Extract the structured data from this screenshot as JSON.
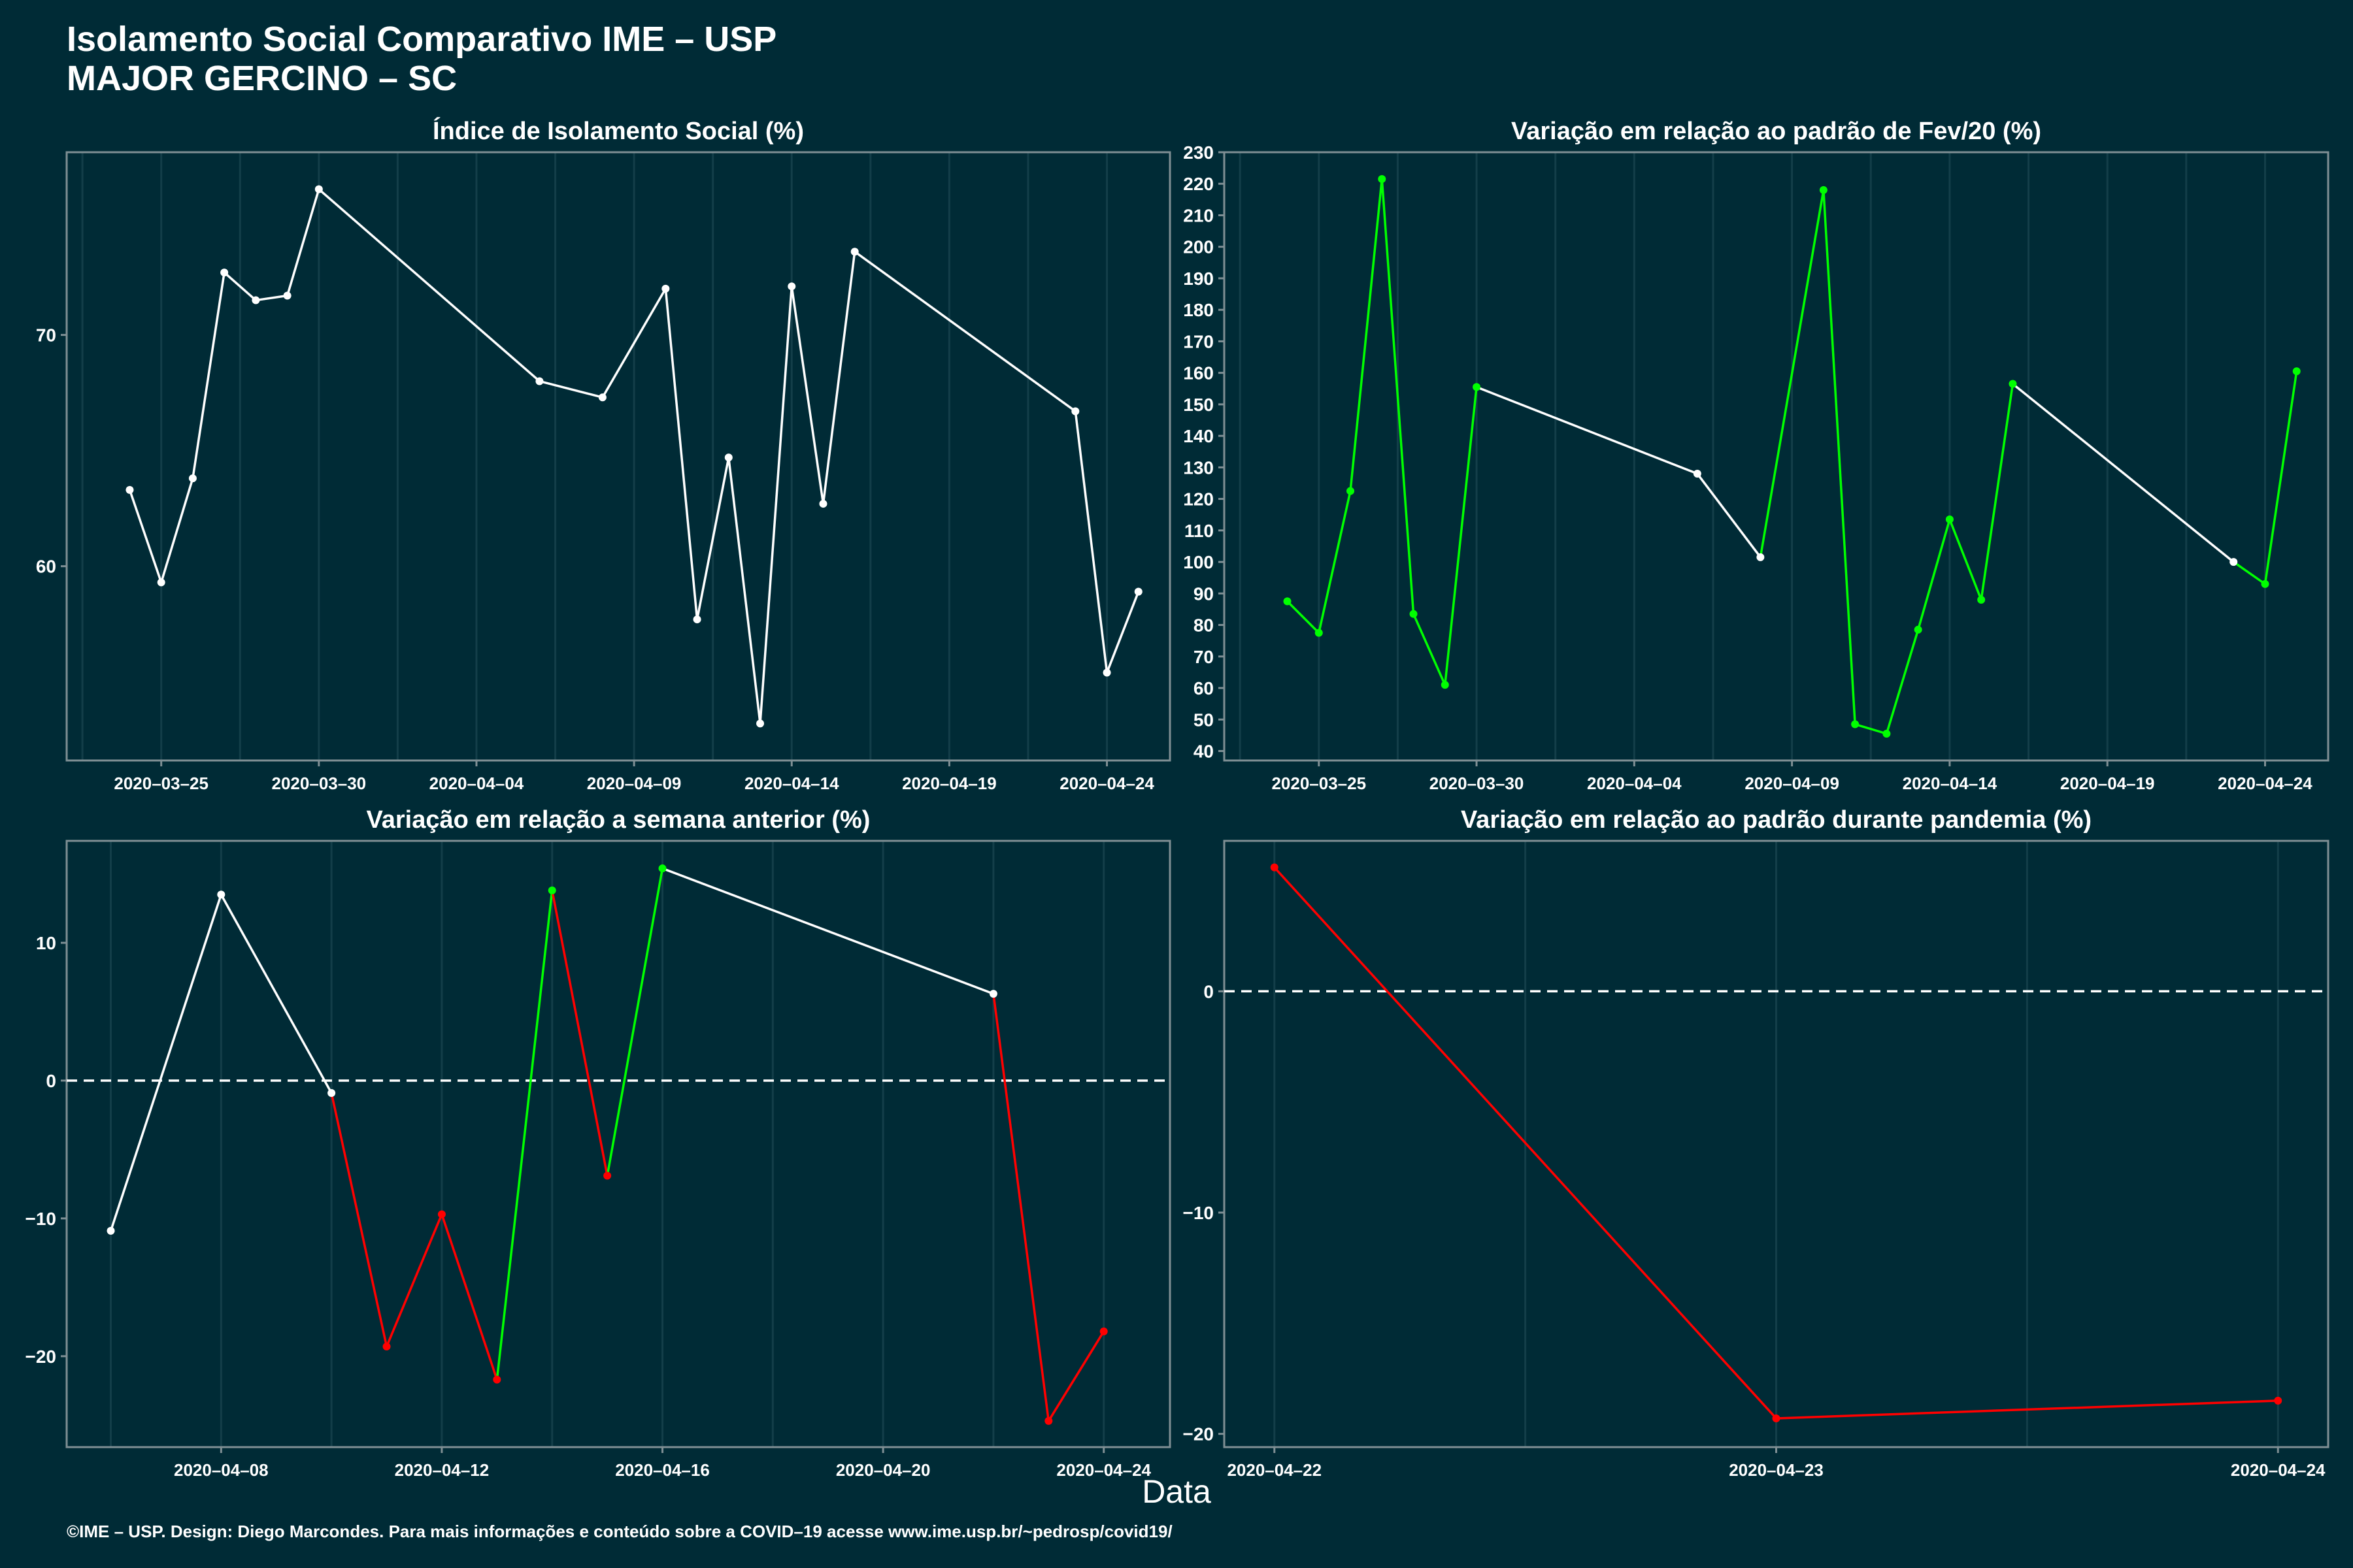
{
  "title_line1": "Isolamento Social Comparativo IME – USP",
  "title_line2": "MAJOR GERCINO – SC",
  "x_axis_label": "Data",
  "footer": "©IME – USP. Design: Diego Marcondes. Para mais informações e conteúdo sobre a COVID–19 acesse www.ime.usp.br/~pedrosp/covid19/",
  "colors": {
    "background": "#002b36",
    "line_default": "#ffffff",
    "increase": "#00ff00",
    "decrease": "#ff0000",
    "axis": "#7f8f94",
    "grid": "#133e49"
  },
  "chart_data": [
    {
      "type": "line",
      "title": "Índice de Isolamento Social (%)",
      "x": [
        "2020-03-24",
        "2020-03-25",
        "2020-03-26",
        "2020-03-27",
        "2020-03-28",
        "2020-03-29",
        "2020-03-30",
        "2020-04-06",
        "2020-04-08",
        "2020-04-10",
        "2020-04-11",
        "2020-04-12",
        "2020-04-13",
        "2020-04-14",
        "2020-04-15",
        "2020-04-16",
        "2020-04-23",
        "2020-04-24",
        "2020-04-25"
      ],
      "values": [
        63.3,
        59.3,
        63.8,
        72.7,
        71.5,
        71.7,
        76.3,
        68.0,
        67.3,
        72.0,
        57.7,
        64.7,
        53.2,
        72.1,
        62.7,
        73.6,
        66.7,
        55.4,
        58.9
      ],
      "segment_colors": [
        "white",
        "white",
        "white",
        "white",
        "white",
        "white",
        "white",
        "white",
        "white",
        "white",
        "white",
        "white",
        "white",
        "white",
        "white",
        "white",
        "white",
        "white"
      ],
      "xticks": [
        "2020-03-25",
        "2020-03-30",
        "2020-04-04",
        "2020-04-09",
        "2020-04-14",
        "2020-04-19",
        "2020-04-24"
      ],
      "yticks": [
        60,
        70
      ],
      "xlim": [
        "2020-03-22",
        "2020-04-26"
      ],
      "ylim": [
        51.6,
        77.9
      ]
    },
    {
      "type": "line",
      "title": "Variação em relação ao padrão de Fev/20 (%)",
      "x": [
        "2020-03-24",
        "2020-03-25",
        "2020-03-26",
        "2020-03-27",
        "2020-03-28",
        "2020-03-29",
        "2020-03-30",
        "2020-04-06",
        "2020-04-08",
        "2020-04-10",
        "2020-04-11",
        "2020-04-12",
        "2020-04-13",
        "2020-04-14",
        "2020-04-15",
        "2020-04-16",
        "2020-04-23",
        "2020-04-24",
        "2020-04-25"
      ],
      "values": [
        87.5,
        77.5,
        122.5,
        221.5,
        83.5,
        61.0,
        155.5,
        128.0,
        101.5,
        218.0,
        48.5,
        45.5,
        78.5,
        113.5,
        88.0,
        156.5,
        100.0,
        93.0,
        160.5
      ],
      "segment_colors": [
        "green",
        "green",
        "green",
        "green",
        "green",
        "green",
        "white",
        "white",
        "green",
        "green",
        "green",
        "green",
        "green",
        "green",
        "green",
        "white",
        "green",
        "green"
      ],
      "xticks": [
        "2020-03-25",
        "2020-03-30",
        "2020-04-04",
        "2020-04-09",
        "2020-04-14",
        "2020-04-19",
        "2020-04-24"
      ],
      "yticks": [
        40,
        50,
        60,
        70,
        80,
        90,
        100,
        110,
        120,
        130,
        140,
        150,
        160,
        170,
        180,
        190,
        200,
        210,
        220,
        230
      ],
      "xlim": [
        "2020-03-22",
        "2020-04-26"
      ],
      "ylim": [
        37,
        230
      ]
    },
    {
      "type": "line",
      "title": "Variação em relação a semana anterior (%)",
      "x": [
        "2020-04-06",
        "2020-04-08",
        "2020-04-10",
        "2020-04-11",
        "2020-04-12",
        "2020-04-13",
        "2020-04-14",
        "2020-04-15",
        "2020-04-16",
        "2020-04-22",
        "2020-04-23",
        "2020-04-24"
      ],
      "values": [
        -10.9,
        13.5,
        -0.9,
        -19.3,
        -9.7,
        -21.7,
        13.8,
        -6.9,
        15.4,
        6.3,
        -24.7,
        -18.2
      ],
      "segment_colors": [
        "white",
        "white",
        "red",
        "red",
        "red",
        "green",
        "red",
        "green",
        "white",
        "red",
        "red"
      ],
      "xticks": [
        "2020-04-08",
        "2020-04-12",
        "2020-04-16",
        "2020-04-20",
        "2020-04-24"
      ],
      "yticks": [
        -20,
        -10,
        0,
        10
      ],
      "reference_line": 0,
      "xlim": [
        "2020-04-05.2",
        "2020-04-25.2"
      ],
      "ylim": [
        -26.6,
        17.4
      ]
    },
    {
      "type": "line",
      "title": "Variação em relação ao padrão durante pandemia (%)",
      "x": [
        "2020-04-22",
        "2020-04-23",
        "2020-04-24"
      ],
      "values": [
        5.6,
        -19.3,
        -18.5
      ],
      "segment_colors": [
        "red",
        "red"
      ],
      "xticks": [
        "2020-04-22",
        "2020-04-23",
        "2020-04-24"
      ],
      "yticks": [
        -20,
        -10,
        0
      ],
      "reference_line": 0,
      "xlim": [
        "2020-04-21.9",
        "2020-04-24.1"
      ],
      "ylim": [
        -20.6,
        6.8
      ]
    }
  ]
}
